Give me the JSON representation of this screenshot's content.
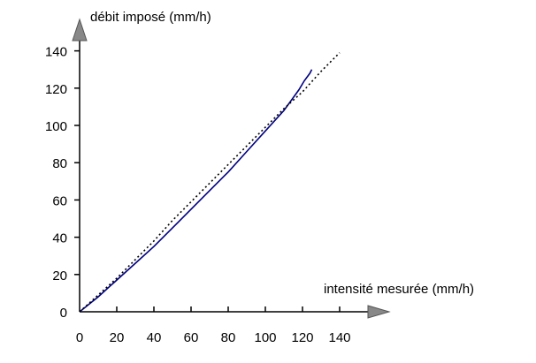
{
  "chart_data": {
    "type": "line",
    "xlabel": "intensité mesurée (mm/h)",
    "ylabel": "débit imposé (mm/h)",
    "xlim": [
      0,
      140
    ],
    "ylim": [
      0,
      140
    ],
    "x_ticks": [
      0,
      20,
      40,
      60,
      80,
      100,
      120,
      140
    ],
    "y_ticks": [
      0,
      20,
      40,
      60,
      80,
      100,
      120,
      140
    ],
    "grid": false,
    "legend": "none",
    "series": [
      {
        "style": "solid",
        "color": "#000080",
        "points": [
          [
            0,
            0
          ],
          [
            10,
            8
          ],
          [
            20,
            17
          ],
          [
            30,
            26
          ],
          [
            40,
            35
          ],
          [
            50,
            45
          ],
          [
            60,
            55
          ],
          [
            70,
            65
          ],
          [
            80,
            75
          ],
          [
            90,
            86
          ],
          [
            100,
            97
          ],
          [
            110,
            108
          ],
          [
            118,
            119
          ],
          [
            121,
            124
          ],
          [
            124,
            128
          ],
          [
            125,
            130
          ]
        ]
      },
      {
        "style": "dotted",
        "color": "#000000",
        "points": [
          [
            0,
            0
          ],
          [
            10,
            9
          ],
          [
            20,
            18
          ],
          [
            30,
            28
          ],
          [
            40,
            38
          ],
          [
            50,
            49
          ],
          [
            60,
            59
          ],
          [
            70,
            69
          ],
          [
            80,
            79
          ],
          [
            90,
            89
          ],
          [
            100,
            99
          ],
          [
            110,
            109
          ],
          [
            120,
            118
          ],
          [
            130,
            129
          ],
          [
            140,
            139
          ]
        ]
      }
    ]
  }
}
